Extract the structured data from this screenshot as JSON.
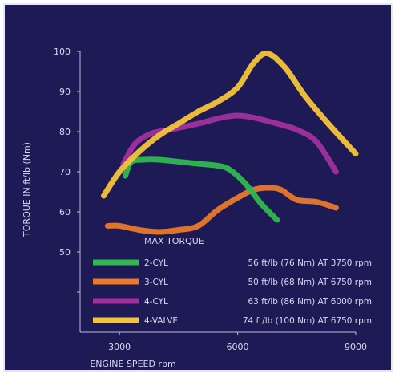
{
  "chart_data": {
    "type": "line",
    "xlabel": "ENGINE SPEED rpm",
    "ylabel": "TORQUE IN ft/lb (Nm)",
    "xlim": [
      2000,
      9000
    ],
    "ylim": [
      30,
      100
    ],
    "xticks": [
      3000,
      6000,
      9000
    ],
    "xtick_labels": [
      "3000",
      "6000",
      "9000"
    ],
    "yticks": [
      50,
      60,
      70,
      80,
      90,
      100
    ],
    "ytick_labels": [
      "50",
      "60",
      "70",
      "80",
      "90",
      "100"
    ],
    "legend_title": "MAX TORQUE",
    "legend_position": "bottom",
    "grid": false,
    "series": [
      {
        "name": "2-CYL",
        "label": "2-CYL",
        "legend_text": "56 ft/lb (76 Nm) AT 3750 rpm",
        "color": "#2fb84e",
        "x": [
          3150,
          3300,
          3600,
          4000,
          4500,
          5000,
          5500,
          5800,
          6200,
          6600,
          7000
        ],
        "y": [
          69,
          72.5,
          73,
          73,
          72.5,
          72,
          71.5,
          70.5,
          67,
          62,
          58
        ]
      },
      {
        "name": "3-CYL",
        "label": "3-CYL",
        "legend_text": "50 ft/lb (68 Nm) AT 6750 rpm",
        "color": "#e8782a",
        "x": [
          2700,
          3000,
          3500,
          4000,
          4500,
          5000,
          5500,
          6000,
          6400,
          6800,
          7100,
          7500,
          8000,
          8500
        ],
        "y": [
          56.5,
          56.5,
          55.5,
          55,
          55.5,
          56.5,
          60.5,
          63.5,
          65.5,
          66,
          65.5,
          63,
          62.5,
          61
        ]
      },
      {
        "name": "4-CYL",
        "label": "4-CYL",
        "legend_text": "63 ft/lb (86 Nm) AT 6000 rpm",
        "color": "#a12f9e",
        "x": [
          3100,
          3400,
          3800,
          4300,
          5000,
          5600,
          6000,
          6400,
          7000,
          7500,
          8000,
          8500
        ],
        "y": [
          72,
          77,
          79.5,
          80.5,
          82,
          83.5,
          84,
          83.5,
          82,
          80.5,
          77.5,
          70
        ]
      },
      {
        "name": "4-VALVE",
        "label": "4-VALVE",
        "legend_text": "74 ft/lb (100 Nm) AT 6750 rpm",
        "color": "#f5c33b",
        "x": [
          2600,
          3000,
          3500,
          4000,
          4500,
          5000,
          5500,
          6000,
          6400,
          6750,
          7200,
          7700,
          8300,
          9000
        ],
        "y": [
          64,
          70,
          75,
          79,
          82,
          85,
          87.5,
          91,
          97,
          99.5,
          96,
          89,
          82,
          74.5
        ]
      }
    ]
  }
}
